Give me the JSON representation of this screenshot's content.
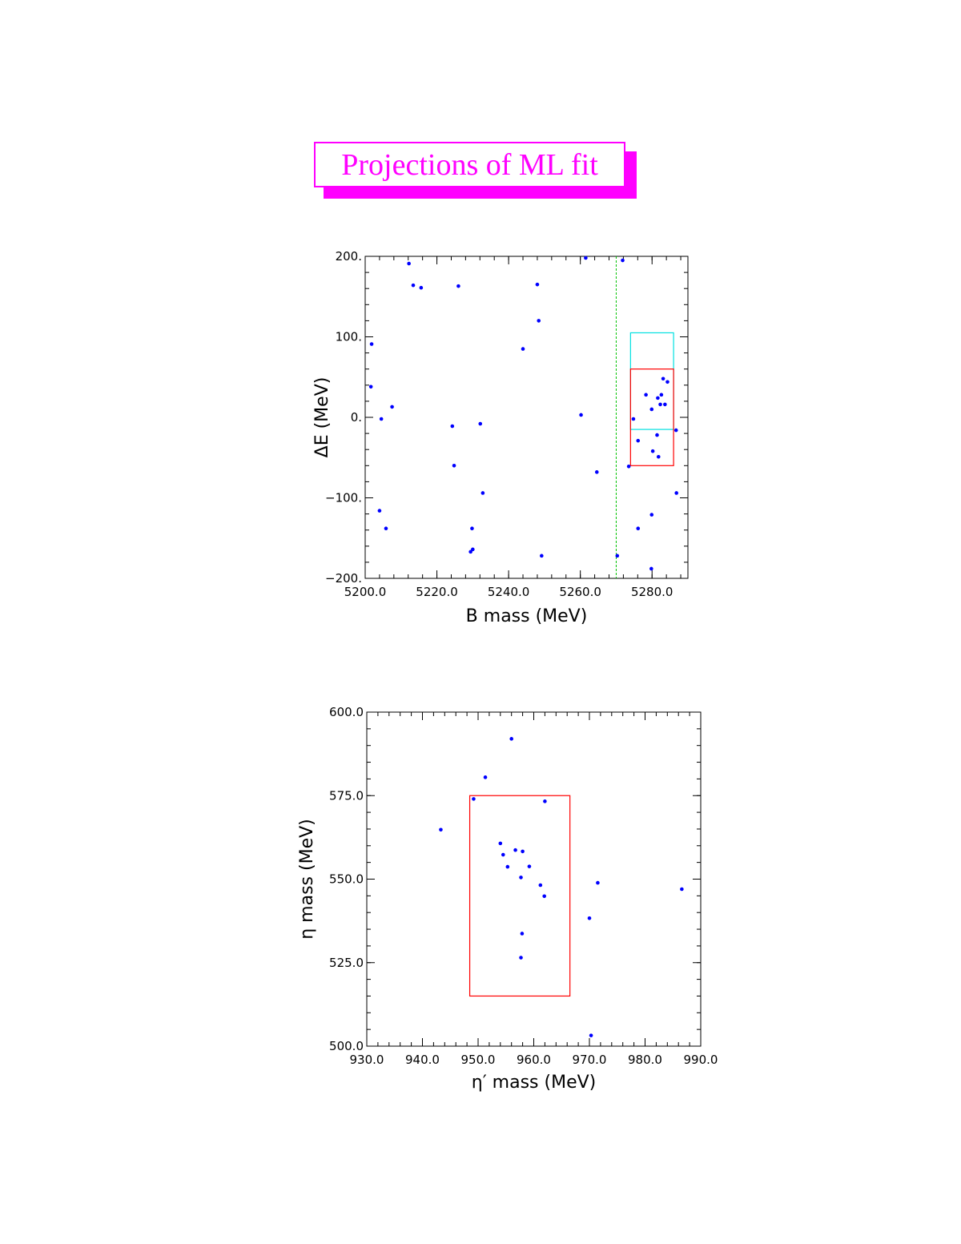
{
  "page_title": "Projections of ML fit",
  "colors": {
    "title": "#ff00ff",
    "points": "#0000ff",
    "signal_box": "#ff0000",
    "sideband_box": "#00e0e0",
    "cut_line": "#00c000",
    "axes": "#000000"
  },
  "chart_data": [
    {
      "type": "scatter",
      "xlabel": "B mass (MeV)",
      "ylabel": "ΔE (MeV)",
      "xlim": [
        5200,
        5290
      ],
      "ylim": [
        -200,
        200
      ],
      "xticks": [
        5200,
        5220,
        5240,
        5260,
        5280
      ],
      "xtick_labels": [
        "5200.0",
        "5220.0",
        "5240.0",
        "5260.0",
        "5280.0"
      ],
      "yticks": [
        -200,
        -100,
        0,
        100,
        200
      ],
      "ytick_labels": [
        "−200.",
        "−100.",
        "0.",
        "100.",
        "200."
      ],
      "x_minor_step": 4,
      "y_minor_step": 20,
      "grid": false,
      "points": [
        [
          5212.2,
          191
        ],
        [
          5213.4,
          164
        ],
        [
          5215.6,
          161
        ],
        [
          5226.0,
          163
        ],
        [
          5248.0,
          165
        ],
        [
          5261.5,
          198
        ],
        [
          5271.8,
          195
        ],
        [
          5248.4,
          120
        ],
        [
          5201.8,
          91
        ],
        [
          5244.0,
          85
        ],
        [
          5201.6,
          38
        ],
        [
          5207.5,
          13
        ],
        [
          5204.5,
          -2
        ],
        [
          5224.3,
          -11
        ],
        [
          5232.1,
          -8
        ],
        [
          5260.2,
          3
        ],
        [
          5224.8,
          -60
        ],
        [
          5264.6,
          -68
        ],
        [
          5232.8,
          -94
        ],
        [
          5204.0,
          -116
        ],
        [
          5205.8,
          -138
        ],
        [
          5229.8,
          -138
        ],
        [
          5229.4,
          -167
        ],
        [
          5230.0,
          -164
        ],
        [
          5249.2,
          -172
        ],
        [
          5270.3,
          -172
        ],
        [
          5283.1,
          48
        ],
        [
          5284.3,
          44
        ],
        [
          5278.3,
          28
        ],
        [
          5282.6,
          28
        ],
        [
          5281.6,
          24
        ],
        [
          5282.3,
          16
        ],
        [
          5283.6,
          16
        ],
        [
          5279.9,
          10
        ],
        [
          5274.8,
          -2
        ],
        [
          5286.7,
          -16
        ],
        [
          5281.4,
          -22
        ],
        [
          5276.1,
          -29
        ],
        [
          5280.2,
          -42
        ],
        [
          5281.8,
          -49
        ],
        [
          5273.5,
          -61
        ],
        [
          5286.8,
          -94
        ],
        [
          5279.9,
          -121
        ],
        [
          5276.1,
          -138
        ],
        [
          5279.8,
          -188
        ]
      ],
      "cut_line": {
        "x": 5270
      },
      "boxes": [
        {
          "role": "sideband",
          "x": [
            5274,
            5286
          ],
          "y": [
            -15,
            105
          ]
        },
        {
          "role": "signal",
          "x": [
            5274,
            5286
          ],
          "y": [
            -60,
            60
          ]
        }
      ]
    },
    {
      "type": "scatter",
      "xlabel": "η′ mass (MeV)",
      "ylabel": "η mass (MeV)",
      "xlim": [
        930,
        990
      ],
      "ylim": [
        500,
        600
      ],
      "xticks": [
        930,
        940,
        950,
        960,
        970,
        980,
        990
      ],
      "xtick_labels": [
        "930.0",
        "940.0",
        "950.0",
        "960.0",
        "970.0",
        "980.0",
        "990.0"
      ],
      "yticks": [
        500,
        525,
        550,
        575,
        600
      ],
      "ytick_labels": [
        "500.0",
        "525.0",
        "550.0",
        "575.0",
        "600.0"
      ],
      "x_minor_step": 2,
      "y_minor_step": 5,
      "grid": false,
      "points": [
        [
          956.0,
          592.0
        ],
        [
          951.3,
          580.5
        ],
        [
          949.2,
          574.0
        ],
        [
          962.0,
          573.3
        ],
        [
          943.3,
          564.8
        ],
        [
          954.0,
          560.7
        ],
        [
          954.5,
          557.3
        ],
        [
          956.7,
          558.7
        ],
        [
          958.0,
          558.3
        ],
        [
          955.3,
          553.7
        ],
        [
          959.2,
          553.8
        ],
        [
          957.7,
          550.5
        ],
        [
          961.2,
          548.2
        ],
        [
          961.9,
          544.9
        ],
        [
          971.5,
          548.9
        ],
        [
          986.6,
          547.0
        ],
        [
          970.0,
          538.3
        ],
        [
          957.9,
          533.7
        ],
        [
          957.7,
          526.5
        ],
        [
          970.3,
          503.2
        ]
      ],
      "boxes": [
        {
          "role": "signal",
          "x": [
            948.5,
            966.5
          ],
          "y": [
            515,
            575
          ]
        }
      ]
    }
  ]
}
